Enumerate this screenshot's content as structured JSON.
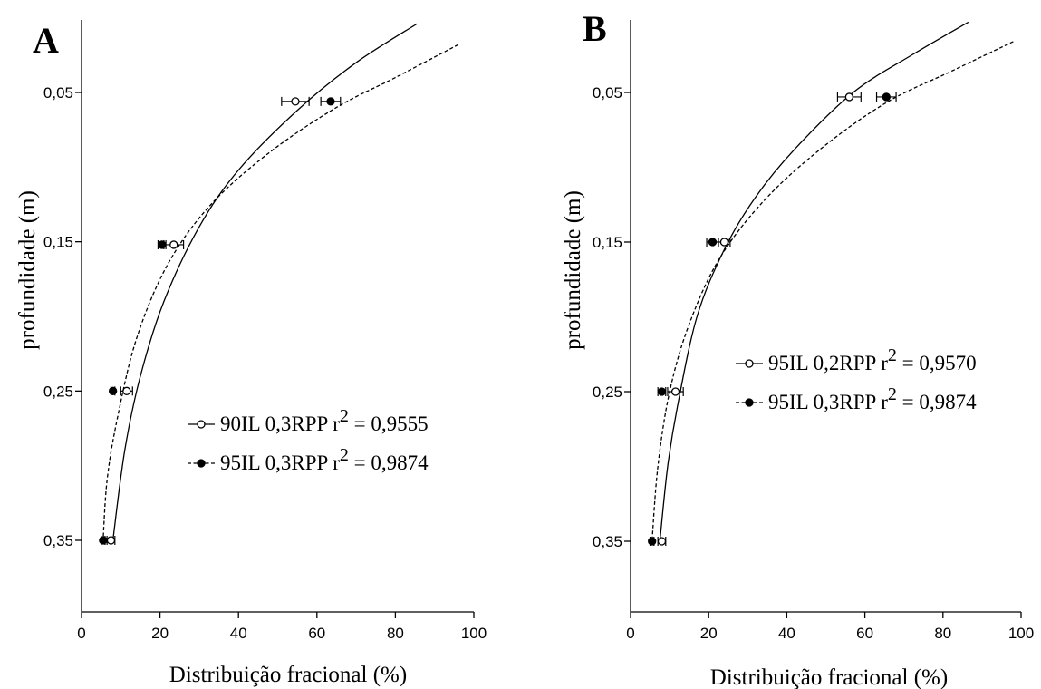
{
  "chart_data": [
    {
      "type": "scatter",
      "panel_label": "A",
      "xlabel": "Distribuição fracional (%)",
      "ylabel": "profundidade (m)",
      "xlim": [
        0,
        100
      ],
      "ylim": [
        0,
        0.45
      ],
      "y_inverted": true,
      "x_ticks": [
        0,
        20,
        40,
        60,
        80,
        100
      ],
      "y_ticks": [
        "0,05",
        "0,15",
        "0,25",
        "0,35"
      ],
      "y_tick_values": [
        0.05,
        0.15,
        0.25,
        0.35
      ],
      "legend_position": "center-right",
      "series": [
        {
          "name": "90IL 0,3RPP",
          "r2_label": "r",
          "r2_sup": "2",
          "r2_value": "= 0,9555",
          "marker": "open-circle",
          "line": "solid",
          "points": [
            {
              "depth": 0.056,
              "value": 54.5,
              "err": 3.5
            },
            {
              "depth": 0.152,
              "value": 23.5,
              "err": 2.5
            },
            {
              "depth": 0.25,
              "value": 11.5,
              "err": 1.5
            },
            {
              "depth": 0.35,
              "value": 7.5,
              "err": 1.0
            }
          ],
          "curve": [
            [
              85.5,
              0.004
            ],
            [
              70,
              0.03
            ],
            [
              55,
              0.062
            ],
            [
              40,
              0.102
            ],
            [
              30,
              0.14
            ],
            [
              21,
              0.19
            ],
            [
              15,
              0.24
            ],
            [
              11,
              0.29
            ],
            [
              8,
              0.35
            ]
          ]
        },
        {
          "name": "95IL 0,3RPP",
          "r2_label": "r",
          "r2_sup": "2",
          "r2_value": "= 0,9874",
          "marker": "filled-circle",
          "line": "dashed",
          "points": [
            {
              "depth": 0.056,
              "value": 63.5,
              "err": 2.5
            },
            {
              "depth": 0.152,
              "value": 20.5,
              "err": 1.0
            },
            {
              "depth": 0.25,
              "value": 8.0,
              "err": 0.5
            },
            {
              "depth": 0.35,
              "value": 5.5,
              "err": 0.5
            }
          ],
          "curve": [
            [
              96,
              0.018
            ],
            [
              80,
              0.04
            ],
            [
              65,
              0.06
            ],
            [
              48,
              0.09
            ],
            [
              33,
              0.125
            ],
            [
              22,
              0.165
            ],
            [
              14,
              0.215
            ],
            [
              9,
              0.27
            ],
            [
              6.5,
              0.31
            ],
            [
              5.5,
              0.35
            ]
          ]
        }
      ]
    },
    {
      "type": "scatter",
      "panel_label": "B",
      "xlabel": "Distribuição fracional (%)",
      "ylabel": "profundidade (m)",
      "xlim": [
        0,
        100
      ],
      "ylim": [
        0,
        0.45
      ],
      "y_inverted": true,
      "x_ticks": [
        0,
        20,
        40,
        60,
        80,
        100
      ],
      "y_ticks": [
        "0,05",
        "0,15",
        "0,25",
        "0,35"
      ],
      "y_tick_values": [
        0.05,
        0.15,
        0.25,
        0.35
      ],
      "legend_position": "center-right",
      "series": [
        {
          "name": "95IL 0,2RPP",
          "r2_label": "r",
          "r2_sup": "2",
          "r2_value": "= 0,9570",
          "marker": "open-circle",
          "line": "solid",
          "points": [
            {
              "depth": 0.053,
              "value": 56.0,
              "err": 3.0
            },
            {
              "depth": 0.15,
              "value": 24.0,
              "err": 1.5
            },
            {
              "depth": 0.25,
              "value": 11.5,
              "err": 2.0
            },
            {
              "depth": 0.35,
              "value": 8.0,
              "err": 1.0
            }
          ],
          "curve": [
            [
              86.5,
              0.003
            ],
            [
              72,
              0.025
            ],
            [
              57,
              0.05
            ],
            [
              42,
              0.088
            ],
            [
              32,
              0.12
            ],
            [
              24,
              0.155
            ],
            [
              17,
              0.2
            ],
            [
              12,
              0.26
            ],
            [
              9.5,
              0.3
            ],
            [
              7.5,
              0.35
            ]
          ]
        },
        {
          "name": "95IL 0,3RPP",
          "r2_label": "r",
          "r2_sup": "2",
          "r2_value": "= 0,9874",
          "marker": "filled-circle",
          "line": "dashed",
          "points": [
            {
              "depth": 0.053,
              "value": 65.5,
              "err": 2.5
            },
            {
              "depth": 0.15,
              "value": 21.0,
              "err": 1.5
            },
            {
              "depth": 0.25,
              "value": 8.0,
              "err": 1.0
            },
            {
              "depth": 0.35,
              "value": 5.5,
              "err": 0.5
            }
          ],
          "curve": [
            [
              98,
              0.016
            ],
            [
              82,
              0.036
            ],
            [
              66,
              0.056
            ],
            [
              50,
              0.085
            ],
            [
              35,
              0.12
            ],
            [
              23,
              0.16
            ],
            [
              15,
              0.205
            ],
            [
              10,
              0.25
            ],
            [
              7,
              0.3
            ],
            [
              5.5,
              0.35
            ]
          ]
        }
      ]
    }
  ]
}
